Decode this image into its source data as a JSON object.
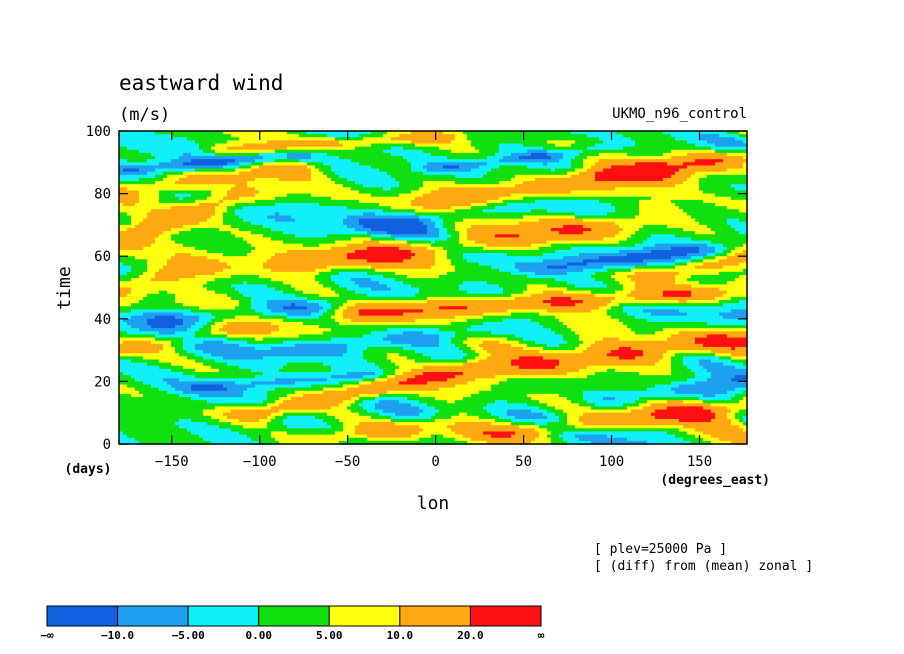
{
  "chart_data": {
    "type": "heatmap",
    "title": "eastward wind",
    "units": "(m/s)",
    "dataset": "UKMO_n96_control",
    "xlabel": "lon",
    "xunits": "(degrees_east)",
    "ylabel": "time",
    "yunits": "(days)",
    "xlim": [
      -180,
      177
    ],
    "ylim": [
      0,
      100
    ],
    "xticks": [
      -150,
      -100,
      -50,
      0,
      50,
      100,
      150
    ],
    "yticks": [
      0,
      20,
      40,
      60,
      80,
      100
    ],
    "annotations": [
      "[ plev=25000 Pa ]",
      "[ (diff) from (mean) zonal ]"
    ],
    "colorbar": {
      "colors": [
        "#1060e0",
        "#1ea0f0",
        "#10f0f8",
        "#10e010",
        "#ffff10",
        "#ffa810",
        "#ff1010"
      ],
      "boundaries": [
        "−∞",
        "−10.0",
        "−5.00",
        "0.00",
        "5.00",
        "10.0",
        "20.0",
        "∞"
      ],
      "levels": [
        -10,
        -5,
        0,
        5,
        10,
        20
      ]
    },
    "features": [
      {
        "x0": -175,
        "y0": 66,
        "x1": -110,
        "y1": 80,
        "w": 4,
        "v": 14
      },
      {
        "x0": -160,
        "y0": 82,
        "x1": -85,
        "y1": 88,
        "w": 3,
        "v": 12
      },
      {
        "x0": -175,
        "y0": 50,
        "x1": -140,
        "y1": 56,
        "w": 4,
        "v": 11
      },
      {
        "x0": -70,
        "y0": 58,
        "x1": 100,
        "y1": 70,
        "w": 4,
        "v": 16
      },
      {
        "x0": 10,
        "y0": 78,
        "x1": 120,
        "y1": 86,
        "w": 4,
        "v": 14
      },
      {
        "x0": -40,
        "y0": 42,
        "x1": 150,
        "y1": 48,
        "w": 3,
        "v": 18
      },
      {
        "x0": -100,
        "y0": 10,
        "x1": 20,
        "y1": 24,
        "w": 3,
        "v": 16
      },
      {
        "x0": 40,
        "y0": 24,
        "x1": 177,
        "y1": 34,
        "w": 4,
        "v": 15
      },
      {
        "x0": -60,
        "y0": 2,
        "x1": 0,
        "y1": 6,
        "w": 3,
        "v": 12
      },
      {
        "x0": 30,
        "y0": 3,
        "x1": 177,
        "y1": 12,
        "w": 3,
        "v": 14
      },
      {
        "x0": 100,
        "y0": 86,
        "x1": 177,
        "y1": 92,
        "w": 3,
        "v": 14
      },
      {
        "x0": -180,
        "y0": 30,
        "x1": -120,
        "y1": 36,
        "w": 3,
        "v": 10
      },
      {
        "x0": 130,
        "y0": 54,
        "x1": 177,
        "y1": 60,
        "w": 3,
        "v": 12
      },
      {
        "x0": -120,
        "y0": 94,
        "x1": 0,
        "y1": 98,
        "w": 2,
        "v": 10
      },
      {
        "x0": -30,
        "y0": 70,
        "x1": 40,
        "y1": 76,
        "w": 3,
        "v": -9
      },
      {
        "x0": -150,
        "y0": 40,
        "x1": -60,
        "y1": 44,
        "w": 3,
        "v": -10
      },
      {
        "x0": 60,
        "y0": 56,
        "x1": 150,
        "y1": 62,
        "w": 3,
        "v": -11
      },
      {
        "x0": -80,
        "y0": 30,
        "x1": 20,
        "y1": 36,
        "w": 3,
        "v": -9
      },
      {
        "x0": 100,
        "y0": 14,
        "x1": 177,
        "y1": 20,
        "w": 3,
        "v": -9
      },
      {
        "x0": -170,
        "y0": 88,
        "x1": -80,
        "y1": 92,
        "w": 2,
        "v": -10
      },
      {
        "x0": 0,
        "y0": 88,
        "x1": 90,
        "y1": 94,
        "w": 2,
        "v": -9
      },
      {
        "x0": -130,
        "y0": 18,
        "x1": -40,
        "y1": 22,
        "w": 2,
        "v": -8
      }
    ]
  }
}
